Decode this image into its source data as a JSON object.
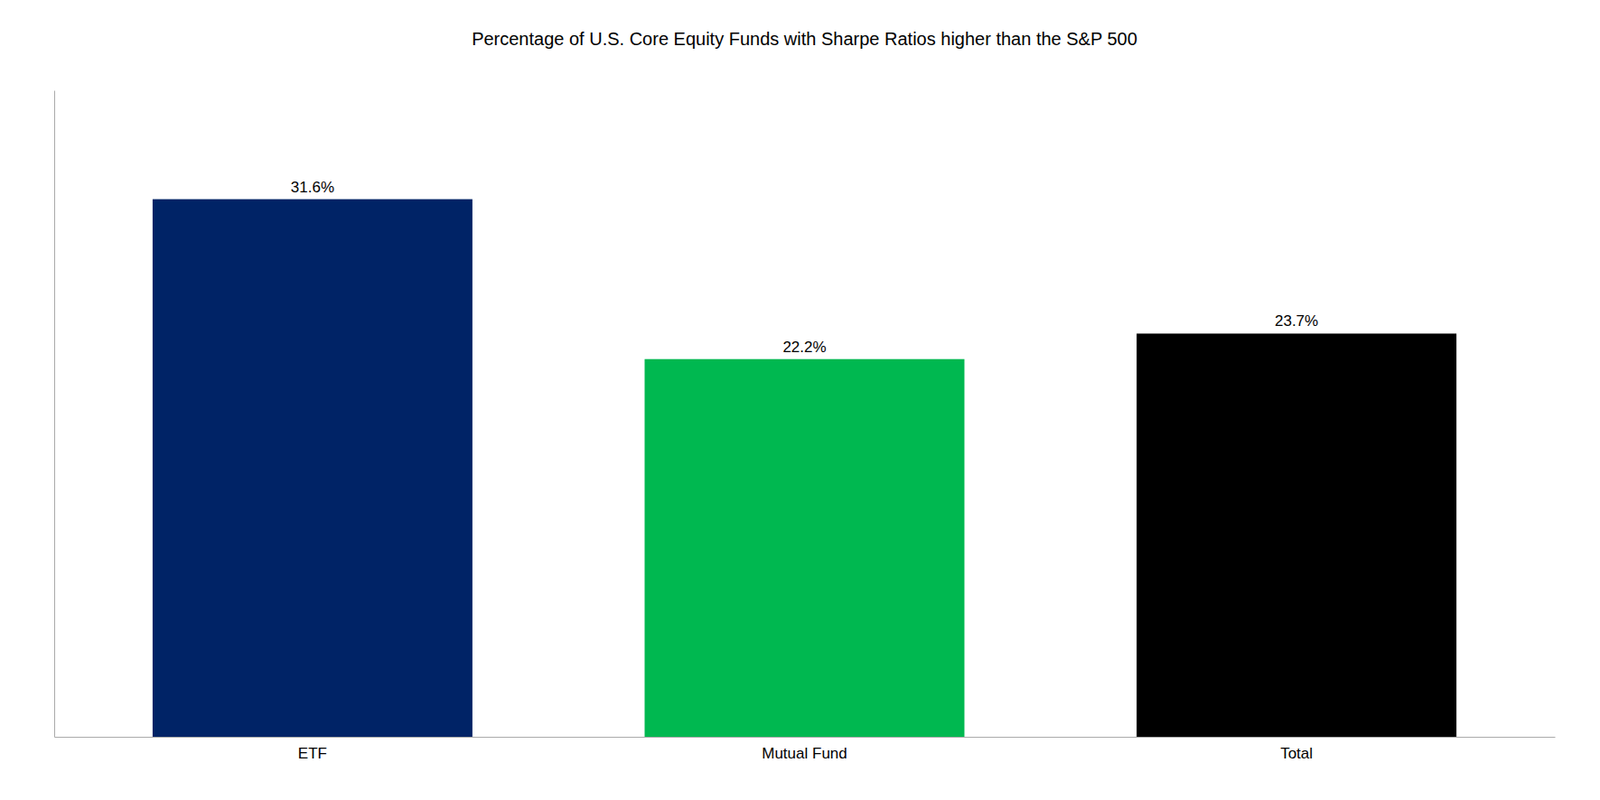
{
  "chart_data": {
    "type": "bar",
    "title": "Percentage of U.S. Core Equity Funds with Sharpe Ratios higher than the S&P 500",
    "categories": [
      "ETF",
      "Mutual Fund",
      "Total"
    ],
    "values": [
      31.6,
      22.2,
      23.7
    ],
    "value_labels": [
      "31.6%",
      "22.2%",
      "23.7%"
    ],
    "colors": [
      "#002366",
      "#00B850",
      "#000000"
    ],
    "ylim": [
      0,
      38
    ],
    "data_labels": true,
    "tick_labels": "x",
    "grid": false
  }
}
